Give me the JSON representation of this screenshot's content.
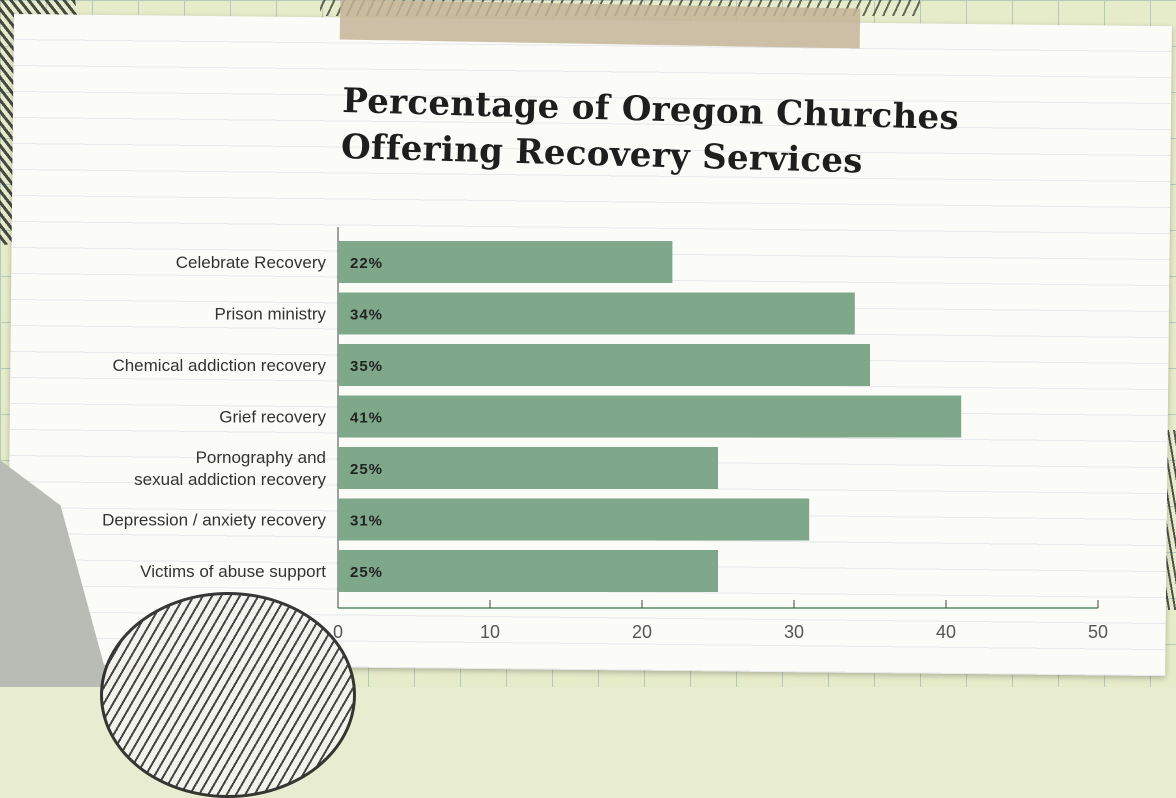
{
  "chart_data": {
    "type": "bar",
    "orientation": "horizontal",
    "title": [
      "Percentage of Oregon Churches",
      "Offering Recovery Services"
    ],
    "categories": [
      "Celebrate Recovery",
      "Prison ministry",
      "Chemical addiction recovery",
      "Grief recovery",
      [
        "Pornography and",
        "sexual addiction recovery"
      ],
      "Depression / anxiety recovery",
      "Victims of abuse support"
    ],
    "values": [
      22,
      34,
      35,
      41,
      25,
      31,
      25
    ],
    "value_labels": [
      "22%",
      "34%",
      "35%",
      "41%",
      "25%",
      "31%",
      "25%"
    ],
    "xticks": [
      0,
      10,
      20,
      30,
      40,
      50
    ],
    "xlim": [
      0,
      50
    ],
    "grid": false,
    "colors": {
      "bar": "#7ea889",
      "axis": "#7ea889"
    }
  }
}
